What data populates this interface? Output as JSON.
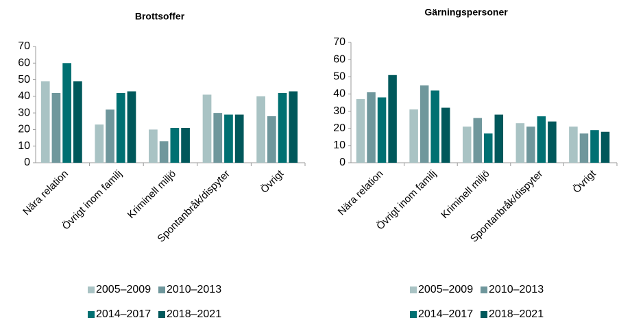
{
  "chart_data": [
    {
      "type": "bar",
      "title": "Brottsoffer",
      "categories": [
        "Nära relation",
        "Övrigt inom familj",
        "Kriminell miljö",
        "Spontanbråk/dispyter",
        "Övrigt"
      ],
      "series": [
        {
          "name": "2005–2009",
          "color": "#a9c3c4",
          "values": [
            49,
            23,
            20,
            41,
            40
          ]
        },
        {
          "name": "2010–2013",
          "color": "#6f979c",
          "values": [
            42,
            32,
            13,
            30,
            28
          ]
        },
        {
          "name": "2014–2017",
          "color": "#007072",
          "values": [
            60,
            42,
            21,
            29,
            42
          ]
        },
        {
          "name": "2018–2021",
          "color": "#00585b",
          "values": [
            49,
            43,
            21,
            29,
            43
          ]
        }
      ],
      "ylim": [
        0,
        70
      ],
      "yticks": [
        0,
        10,
        20,
        30,
        40,
        50,
        60,
        70
      ],
      "grid": false
    },
    {
      "type": "bar",
      "title": "Gärningspersoner",
      "categories": [
        "Nära relation",
        "Övrigt inom familj",
        "Kriminell miljö",
        "Spontanbråk/dispyter",
        "Övrigt"
      ],
      "series": [
        {
          "name": "2005–2009",
          "color": "#a9c3c4",
          "values": [
            37,
            31,
            21,
            23,
            21
          ]
        },
        {
          "name": "2010–2013",
          "color": "#6f979c",
          "values": [
            41,
            45,
            26,
            21,
            17
          ]
        },
        {
          "name": "2014–2017",
          "color": "#007072",
          "values": [
            38,
            42,
            17,
            27,
            19
          ]
        },
        {
          "name": "2018–2021",
          "color": "#00585b",
          "values": [
            51,
            32,
            28,
            24,
            18
          ]
        }
      ],
      "ylim": [
        0,
        70
      ],
      "yticks": [
        0,
        10,
        20,
        30,
        40,
        50,
        60,
        70
      ],
      "grid": false
    }
  ]
}
